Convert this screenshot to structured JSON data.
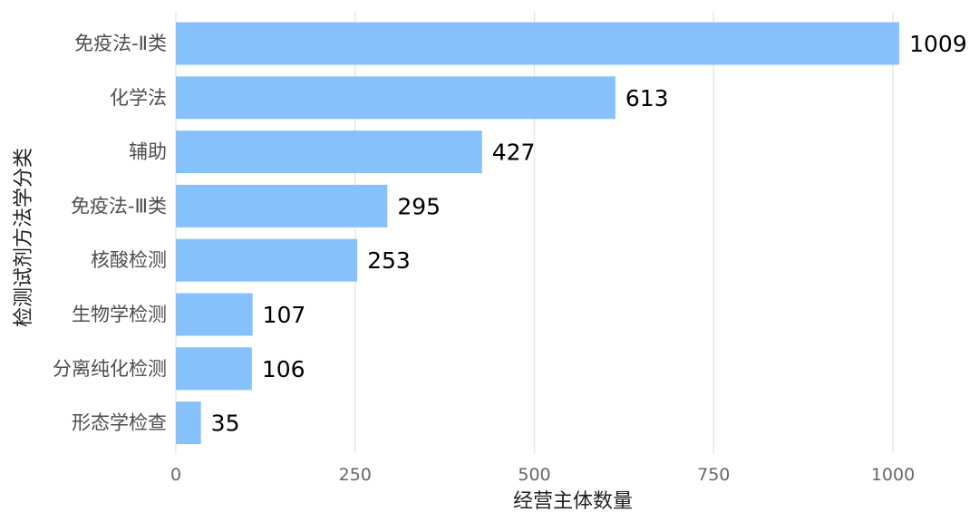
{
  "chart_data": {
    "type": "bar",
    "orientation": "horizontal",
    "categories": [
      "免疫法-Ⅱ类",
      "化学法",
      "辅助",
      "免疫法-Ⅲ类",
      "核酸检测",
      "生物学检测",
      "分离纯化检测",
      "形态学检查"
    ],
    "values": [
      1009,
      613,
      427,
      295,
      253,
      107,
      106,
      35
    ],
    "title": "",
    "xlabel": "经营主体数量",
    "ylabel": "检测试剂方法学分类",
    "xlim": [
      0,
      1000
    ],
    "x_ticks": [
      0,
      250,
      500,
      750,
      1000
    ],
    "grid": true,
    "legend": "none",
    "bar_color": "#86c1fc",
    "grid_color": "#e8e8e8"
  }
}
